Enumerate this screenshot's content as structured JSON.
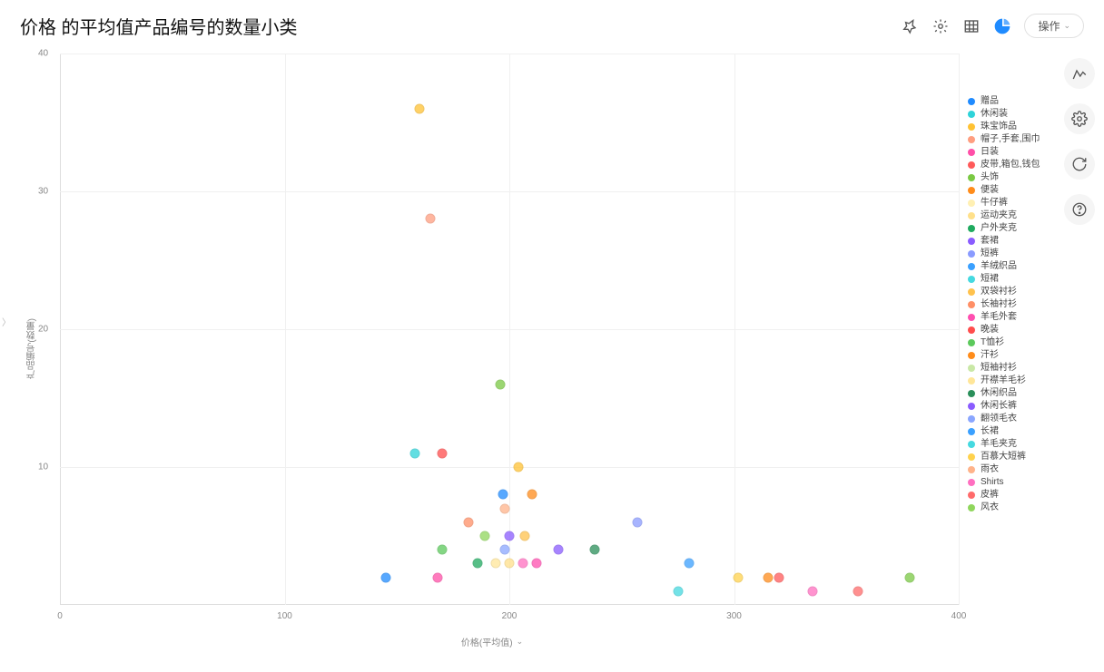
{
  "title": "价格 的平均值产品编号的数量小类",
  "toolbar": {
    "ops_label": "操作",
    "icons": [
      "pin-icon",
      "gear-icon",
      "table-icon",
      "chart-type-icon"
    ]
  },
  "side_tools": [
    "edit-line-icon",
    "settings-icon",
    "refresh-icon",
    "help-icon"
  ],
  "chart": {
    "type": "scatter",
    "x_axis_label": "价格(平均值)",
    "y_axis_label": "产品编号(数量)",
    "xlim": [
      0,
      400
    ],
    "ylim": [
      0,
      40
    ],
    "x_ticks": [
      0,
      100,
      200,
      300,
      400
    ],
    "y_ticks": [
      10,
      20,
      30,
      40
    ],
    "grid_x": [
      100,
      200,
      300,
      400
    ],
    "grid_y": [
      10,
      20,
      30,
      40
    ],
    "background_color": "#ffffff",
    "grid_color": "#f0f0f0",
    "axis_color": "#dddddd",
    "tick_fontsize": 10,
    "marker_size": 11,
    "series": [
      {
        "label": "赠品",
        "color": "#1f8bff"
      },
      {
        "label": "休闲装",
        "color": "#2ed3d9"
      },
      {
        "label": "珠宝饰品",
        "color": "#ffc233"
      },
      {
        "label": "帽子,手套,围巾",
        "color": "#ff9e80"
      },
      {
        "label": "日装",
        "color": "#ff4fa8"
      },
      {
        "label": "皮带,箱包,钱包",
        "color": "#ff5a5a"
      },
      {
        "label": "头饰",
        "color": "#7ac943"
      },
      {
        "label": "便装",
        "color": "#ff8c1a"
      },
      {
        "label": "牛仔裤",
        "color": "#fff0b3"
      },
      {
        "label": "运动夹克",
        "color": "#ffe08a"
      },
      {
        "label": "户外夹克",
        "color": "#1faa5f"
      },
      {
        "label": "套裙",
        "color": "#8a5cff"
      },
      {
        "label": "短裤",
        "color": "#8a9bff"
      },
      {
        "label": "羊绒织品",
        "color": "#3aa0ff"
      },
      {
        "label": "短裙",
        "color": "#45d9e0"
      },
      {
        "label": "双袋衬衫",
        "color": "#ffc24d"
      },
      {
        "label": "长袖衬衫",
        "color": "#ff8f66"
      },
      {
        "label": "羊毛外套",
        "color": "#ff4fb0"
      },
      {
        "label": "晚装",
        "color": "#ff4d4d"
      },
      {
        "label": "T恤衫",
        "color": "#5cc95c"
      },
      {
        "label": "汗衫",
        "color": "#ff8c1a"
      },
      {
        "label": "短袖衬衫",
        "color": "#c9e8a6"
      },
      {
        "label": "开襟羊毛衫",
        "color": "#ffe699"
      },
      {
        "label": "休闲织品",
        "color": "#2a8f5a"
      },
      {
        "label": "休闲长裤",
        "color": "#8a5cff"
      },
      {
        "label": "翻领毛衣",
        "color": "#8aa6ff"
      },
      {
        "label": "长裙",
        "color": "#3aa0ff"
      },
      {
        "label": "羊毛夹克",
        "color": "#45d9e0"
      },
      {
        "label": "百慕大短裤",
        "color": "#ffd24d"
      },
      {
        "label": "雨衣",
        "color": "#ffb38a"
      },
      {
        "label": "Shirts",
        "color": "#ff6fc0"
      },
      {
        "label": "皮裤",
        "color": "#ff6b6b"
      },
      {
        "label": "风衣",
        "color": "#8fd65c"
      }
    ],
    "points": [
      {
        "x": 160,
        "y": 36,
        "series": 2
      },
      {
        "x": 165,
        "y": 28,
        "series": 3
      },
      {
        "x": 196,
        "y": 16,
        "series": 6
      },
      {
        "x": 158,
        "y": 11,
        "series": 1
      },
      {
        "x": 170,
        "y": 11,
        "series": 18
      },
      {
        "x": 204,
        "y": 10,
        "series": 2
      },
      {
        "x": 197,
        "y": 8,
        "series": 0
      },
      {
        "x": 210,
        "y": 8,
        "series": 7
      },
      {
        "x": 198,
        "y": 7,
        "series": 29
      },
      {
        "x": 182,
        "y": 6,
        "series": 16
      },
      {
        "x": 257,
        "y": 6,
        "series": 12
      },
      {
        "x": 189,
        "y": 5,
        "series": 32
      },
      {
        "x": 200,
        "y": 5,
        "series": 11
      },
      {
        "x": 207,
        "y": 5,
        "series": 15
      },
      {
        "x": 170,
        "y": 4,
        "series": 19
      },
      {
        "x": 198,
        "y": 4,
        "series": 25
      },
      {
        "x": 222,
        "y": 4,
        "series": 24
      },
      {
        "x": 238,
        "y": 4,
        "series": 23
      },
      {
        "x": 186,
        "y": 3,
        "series": 10
      },
      {
        "x": 194,
        "y": 3,
        "series": 22
      },
      {
        "x": 200,
        "y": 3,
        "series": 9
      },
      {
        "x": 206,
        "y": 3,
        "series": 30
      },
      {
        "x": 212,
        "y": 3,
        "series": 17
      },
      {
        "x": 280,
        "y": 3,
        "series": 13
      },
      {
        "x": 145,
        "y": 2,
        "series": 0
      },
      {
        "x": 168,
        "y": 2,
        "series": 4
      },
      {
        "x": 315,
        "y": 2,
        "series": 20
      },
      {
        "x": 320,
        "y": 2,
        "series": 5
      },
      {
        "x": 378,
        "y": 2,
        "series": 6
      },
      {
        "x": 302,
        "y": 2,
        "series": 28
      },
      {
        "x": 275,
        "y": 1,
        "series": 27
      },
      {
        "x": 335,
        "y": 1,
        "series": 30
      },
      {
        "x": 355,
        "y": 1,
        "series": 31
      }
    ]
  }
}
